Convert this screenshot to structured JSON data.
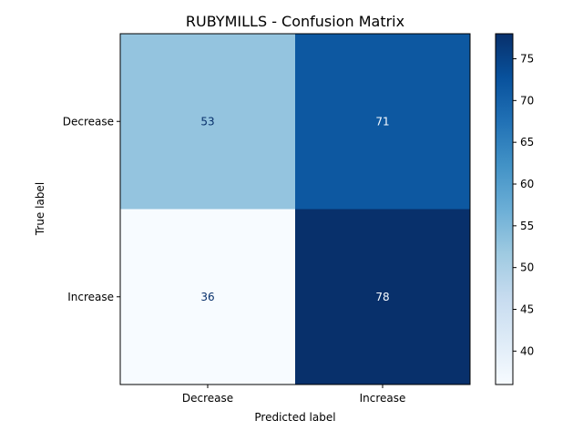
{
  "chart_data": {
    "type": "heatmap",
    "title": "RUBYMILLS - Confusion Matrix",
    "xlabel": "Predicted label",
    "ylabel": "True label",
    "x_categories": [
      "Decrease",
      "Increase"
    ],
    "y_categories": [
      "Decrease",
      "Increase"
    ],
    "values": [
      [
        53,
        71
      ],
      [
        36,
        78
      ]
    ],
    "colormap": "Blues",
    "colorbar": {
      "range": [
        36,
        78
      ],
      "ticks": [
        40,
        45,
        50,
        55,
        60,
        65,
        70,
        75
      ]
    },
    "grid": false,
    "colors": {
      "cell_53": "#94c4df",
      "cell_71": "#0d58a1",
      "cell_36": "#f7fbff",
      "cell_78": "#08306b",
      "text_dark": "#08306b",
      "text_light": "#f7fbff"
    }
  }
}
